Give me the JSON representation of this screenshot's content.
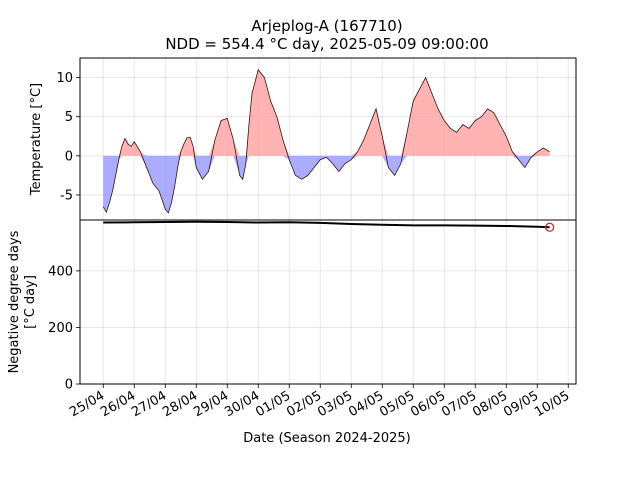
{
  "figure": {
    "title_line1": "Arjeplog-A (167710)",
    "title_line2": "NDD = 554.4 °C day, 2025-05-09 09:00:00"
  },
  "chart_data": [
    {
      "type": "area",
      "ylabel": "Temperature [°C]",
      "ylim": [
        -8.2,
        12.5
      ],
      "yticks": [
        -5,
        0,
        5,
        10
      ],
      "grid": true,
      "colors": {
        "positive_fill": "#ff9999",
        "negative_fill": "#8080ff",
        "positive_line": "#4d0000",
        "negative_line": "#00004d"
      },
      "x_unit": "days after 25/04 00:00",
      "series": [
        {
          "x": [
            0,
            0.1,
            0.2,
            0.3,
            0.4,
            0.5,
            0.6,
            0.7,
            0.8,
            0.9,
            1.0,
            1.2,
            1.4,
            1.6,
            1.8,
            2.0,
            2.1,
            2.2,
            2.3,
            2.4,
            2.5,
            2.6,
            2.7,
            2.8,
            2.9,
            3.0,
            3.2,
            3.4,
            3.6,
            3.8,
            4.0,
            4.2,
            4.4,
            4.5,
            4.6,
            4.7,
            4.8,
            5.0,
            5.2,
            5.4,
            5.6,
            5.8,
            6.0,
            6.2,
            6.4,
            6.6,
            6.8,
            7.0,
            7.2,
            7.4,
            7.6,
            7.8,
            8.0,
            8.2,
            8.4,
            8.6,
            8.8,
            9.0,
            9.2,
            9.4,
            9.6,
            9.8,
            10.0,
            10.2,
            10.4,
            10.6,
            10.8,
            11.0,
            11.2,
            11.4,
            11.6,
            11.8,
            12.0,
            12.2,
            12.4,
            12.6,
            12.8,
            13.0,
            13.2,
            13.4,
            13.6,
            13.8,
            14.0,
            14.2,
            14.4
          ],
          "y": [
            -6.5,
            -7.2,
            -6.0,
            -4.5,
            -2.5,
            -0.5,
            1.2,
            2.2,
            1.5,
            1.2,
            1.8,
            0.5,
            -1.5,
            -3.5,
            -4.5,
            -6.8,
            -7.3,
            -6.0,
            -4.0,
            -1.5,
            0.5,
            1.5,
            2.3,
            2.4,
            1.2,
            -1.5,
            -3.0,
            -2.0,
            2.0,
            4.5,
            4.8,
            2.0,
            -2.5,
            -3.0,
            -1.0,
            4.0,
            8.0,
            11.0,
            10.0,
            7.0,
            5.0,
            2.0,
            -0.5,
            -2.5,
            -3.0,
            -2.5,
            -1.5,
            -0.5,
            -0.2,
            -1.0,
            -2.0,
            -1.0,
            -0.5,
            0.5,
            2.0,
            4.0,
            6.0,
            2.5,
            -1.5,
            -2.5,
            -1.0,
            3.0,
            7.0,
            8.5,
            10.0,
            8.0,
            6.0,
            4.5,
            3.5,
            3.0,
            4.0,
            3.5,
            4.5,
            5.0,
            6.0,
            5.5,
            4.0,
            2.5,
            0.5,
            -0.5,
            -1.5,
            -0.2,
            0.5,
            1.0,
            0.5
          ]
        }
      ]
    },
    {
      "type": "line",
      "xlabel": "Date (Season 2024-2025)",
      "ylabel_line1": "Negative degree days",
      "ylabel_line2": "[°C day]",
      "ylim": [
        0,
        580
      ],
      "yticks": [
        0,
        200,
        400
      ],
      "grid": true,
      "categories": [
        "25/04",
        "26/04",
        "27/04",
        "28/04",
        "29/04",
        "30/04",
        "01/05",
        "02/05",
        "03/05",
        "04/05",
        "05/05",
        "06/05",
        "07/05",
        "08/05",
        "09/05",
        "10/05"
      ],
      "x": [
        0,
        1,
        2,
        3,
        4,
        5,
        6,
        7,
        8,
        9,
        10,
        11,
        12,
        13,
        14,
        14.4
      ],
      "values": [
        571,
        572,
        573,
        574,
        573,
        571,
        572,
        570,
        566,
        563,
        561,
        561,
        560,
        559,
        556,
        554.4
      ],
      "marker": {
        "x": 14.4,
        "y": 554.4,
        "color": "#d62728"
      }
    }
  ]
}
